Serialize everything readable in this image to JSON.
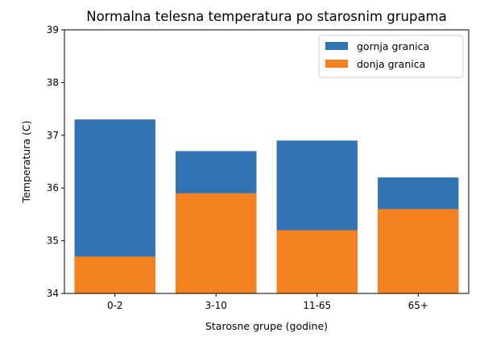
{
  "chart_data": {
    "type": "bar",
    "title": "Normalna telesna temperatura po starosnim grupama",
    "xlabel": "Starosne grupe (godine)",
    "ylabel": "Temperatura (C)",
    "categories": [
      "0-2",
      "3-10",
      "11-65",
      "65+"
    ],
    "series": [
      {
        "name": "gornja granica",
        "color": "#3274b3",
        "values": [
          37.3,
          36.7,
          36.9,
          36.2
        ]
      },
      {
        "name": "donja granica",
        "color": "#f58220",
        "values": [
          34.7,
          35.9,
          35.2,
          35.6
        ]
      }
    ],
    "ylim": [
      34,
      39
    ],
    "yticks": [
      34,
      35,
      36,
      37,
      38,
      39
    ],
    "grid": false,
    "legend_position": "top-right"
  }
}
